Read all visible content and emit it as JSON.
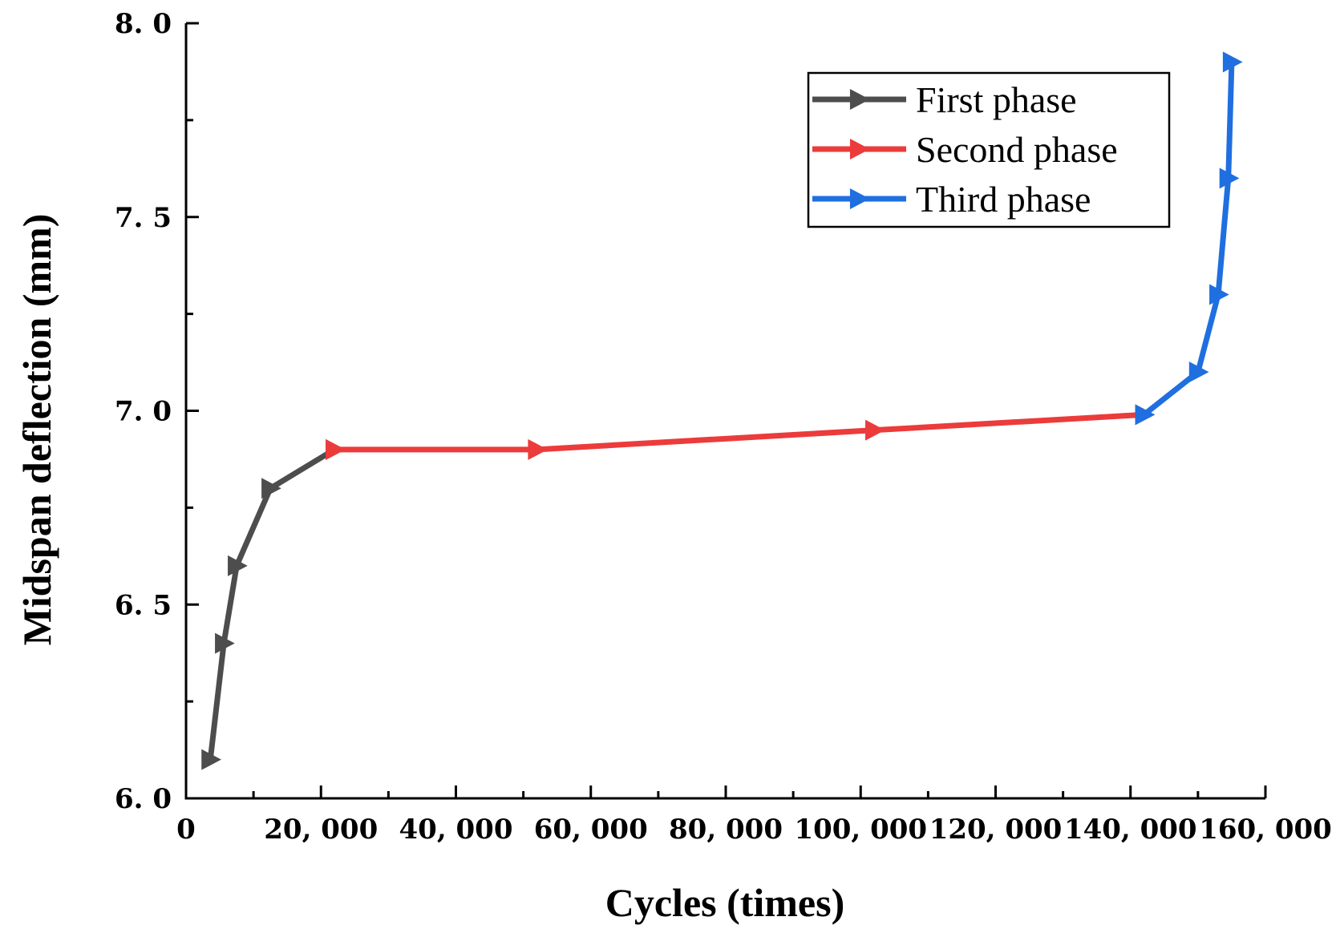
{
  "chart_data": {
    "type": "line",
    "title": "",
    "xlabel": "Cycles (times)",
    "ylabel": "Midspan deflection (mm)",
    "xlim": [
      0,
      160000
    ],
    "ylim": [
      6.0,
      8.0
    ],
    "x_ticks": [
      0,
      20000,
      40000,
      60000,
      80000,
      100000,
      120000,
      140000,
      160000
    ],
    "x_tick_labels": [
      "0",
      "20, 000",
      "40, 000",
      "60, 000",
      "80, 000",
      "100, 000",
      "120, 000",
      "140, 000",
      "160, 000"
    ],
    "y_ticks": [
      6.0,
      6.5,
      7.0,
      7.5,
      8.0
    ],
    "y_tick_labels": [
      "6. 0",
      "6. 5",
      "7. 0",
      "7. 5",
      "8. 0"
    ],
    "grid": false,
    "legend_position": "top-right",
    "marker": "right-triangle",
    "series": [
      {
        "name": "First phase",
        "color": "#4d4d4d",
        "x": [
          3600,
          5600,
          7500,
          12500,
          22000
        ],
        "y": [
          6.1,
          6.4,
          6.6,
          6.8,
          6.9
        ]
      },
      {
        "name": "Second phase",
        "color": "#ec3b3b",
        "x": [
          22000,
          52000,
          102000,
          142000
        ],
        "y": [
          6.9,
          6.9,
          6.95,
          6.99
        ]
      },
      {
        "name": "Third phase",
        "color": "#1f6fe0",
        "x": [
          142000,
          150000,
          153000,
          154500,
          155000
        ],
        "y": [
          6.99,
          7.1,
          7.3,
          7.6,
          7.9
        ]
      }
    ]
  }
}
